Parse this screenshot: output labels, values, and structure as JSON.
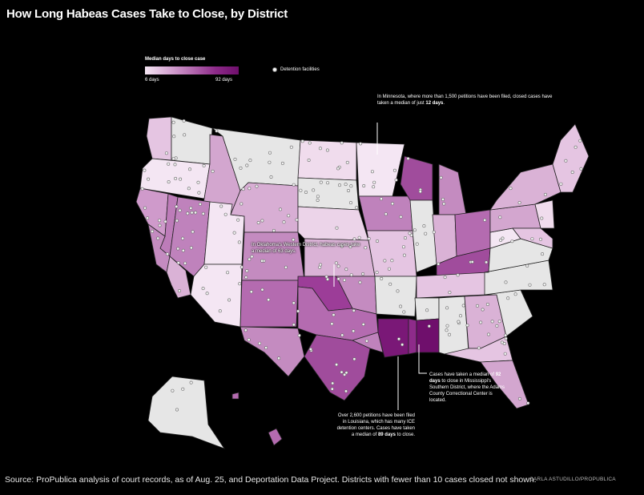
{
  "title": "How Long Habeas Cases Take to Close, by District",
  "legend": {
    "title": "Median days to close case",
    "min_label": "6 days",
    "max_label": "92 days",
    "min_color": "#f4e6f3",
    "max_color": "#6f0f6c",
    "facilities_label": "Detention facilities"
  },
  "annotations": {
    "minnesota": {
      "pre": "In Minnesota, where more than 1,500 petitions have been filed, closed cases have taken a median of just ",
      "bold": "12 days",
      "post": "."
    },
    "oklahoma": {
      "text": "In Oklahoma's Western District, habeas cases take a median of 63 days."
    },
    "mississippi": {
      "pre": "Cases have taken a median of ",
      "bold": "92 days",
      "post": " to close in Mississippi's Southern District, where the Adams County Correctional Center is located."
    },
    "louisiana": {
      "pre": "Over 2,600 petitions have been filed in Louisiana, which has many ICE detention centers. Cases have taken a median of ",
      "bold": "89 days",
      "post": " to close."
    }
  },
  "source": "Source: ProPublica analysis of court records, as of Aug. 25, and Deportation Data Project. Districts with fewer than 10 cases closed not shown.",
  "credit": "CARLA ASTUDILLO/PROPUBLICA",
  "colors": {
    "no_data": "#e6e6e6",
    "background": "#000000"
  }
}
